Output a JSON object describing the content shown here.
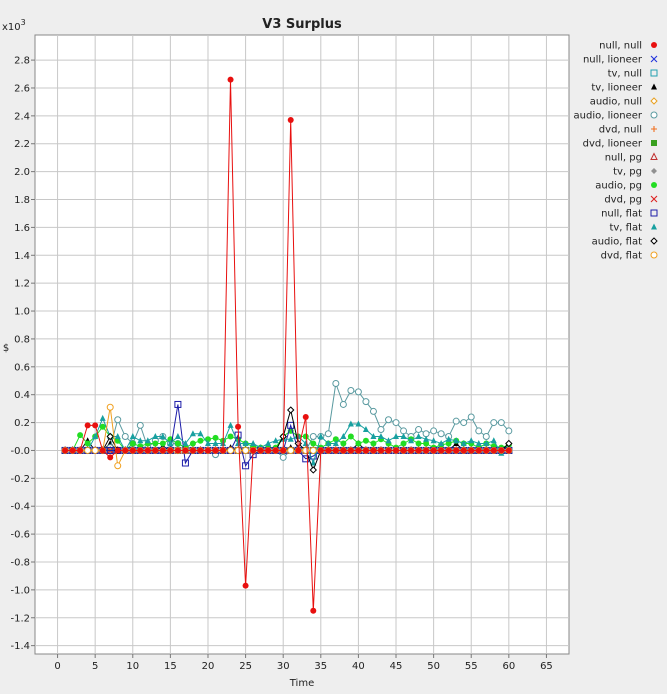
{
  "chart_data": {
    "type": "line",
    "title": "V3 Surplus",
    "xlabel": "Time",
    "ylabel": "$",
    "y_multiplier_label": "x10",
    "y_multiplier_exponent": "3",
    "xlim": [
      -3,
      68
    ],
    "ylim": [
      -1.46,
      2.98
    ],
    "x_ticks": [
      0,
      5,
      10,
      15,
      20,
      25,
      30,
      35,
      40,
      45,
      50,
      55,
      60,
      65
    ],
    "y_ticks": [
      -1.4,
      -1.2,
      -1.0,
      -0.8,
      -0.6,
      -0.4,
      -0.2,
      0.0,
      0.2,
      0.4,
      0.6,
      0.8,
      1.0,
      1.2,
      1.4,
      1.6,
      1.8,
      2.0,
      2.2,
      2.4,
      2.6,
      2.8
    ],
    "y_tick_labels": [
      "-1.4",
      "-1.2",
      "-1.0",
      "-0.8",
      "-0.6",
      "-0.4",
      "-0.2",
      "-0.0",
      "0.2",
      "0.4",
      "0.6",
      "0.8",
      "1.0",
      "1.2",
      "1.4",
      "1.6",
      "1.8",
      "2.0",
      "2.2",
      "2.4",
      "2.6",
      "2.8"
    ],
    "grid": true,
    "legend_position": "right",
    "x": [
      1,
      2,
      3,
      4,
      5,
      6,
      7,
      8,
      9,
      10,
      11,
      12,
      13,
      14,
      15,
      16,
      17,
      18,
      19,
      20,
      21,
      22,
      23,
      24,
      25,
      26,
      27,
      28,
      29,
      30,
      31,
      32,
      33,
      34,
      35,
      36,
      37,
      38,
      39,
      40,
      41,
      42,
      43,
      44,
      45,
      46,
      47,
      48,
      49,
      50,
      51,
      52,
      53,
      54,
      55,
      56,
      57,
      58,
      59,
      60
    ],
    "series": [
      {
        "name": "null, null",
        "color": "#e8100f",
        "marker": "circle-filled",
        "values": [
          0,
          0,
          0,
          0.18,
          0.18,
          0,
          -0.05,
          0,
          0,
          0,
          0,
          0,
          0,
          0,
          0,
          0,
          0,
          0,
          0,
          0,
          0,
          0,
          2.66,
          0.17,
          -0.97,
          0,
          0,
          0,
          0,
          0,
          2.37,
          0,
          0.24,
          -1.15,
          0,
          0,
          0,
          0,
          0,
          0,
          0,
          0,
          0,
          0,
          0,
          0,
          0,
          0,
          0,
          0,
          0,
          0,
          0,
          0,
          0,
          0,
          0,
          0,
          0,
          0
        ]
      },
      {
        "name": "null, lioneer",
        "color": "#2233dd",
        "marker": "x",
        "values": [
          0,
          0,
          0,
          0,
          0,
          0,
          0,
          0,
          0,
          0,
          0,
          0,
          0,
          0,
          0,
          0,
          0,
          0,
          0,
          0,
          0,
          0,
          0,
          0,
          0,
          0,
          0,
          0,
          0,
          0,
          0,
          0,
          0,
          0,
          0,
          0,
          0,
          0,
          0,
          0,
          0,
          0,
          0,
          0,
          0,
          0,
          0,
          0,
          0,
          0,
          0,
          0,
          0,
          0,
          0,
          0,
          0,
          0,
          0,
          0
        ]
      },
      {
        "name": "tv, null",
        "color": "#22a0b0",
        "marker": "square-open",
        "values": [
          0,
          0,
          0,
          0,
          0,
          0,
          0,
          0,
          0,
          0,
          0,
          0,
          0,
          0,
          0,
          0,
          0,
          0,
          0,
          0,
          0,
          0,
          0,
          0,
          0,
          0,
          0,
          0,
          0,
          0,
          0,
          0,
          0,
          0,
          0,
          0,
          0,
          0,
          0,
          0,
          0,
          0,
          0,
          0,
          0,
          0,
          0,
          0,
          0,
          0,
          0,
          0,
          0,
          0,
          0,
          0,
          0,
          0,
          0,
          0
        ]
      },
      {
        "name": "tv, lioneer",
        "color": "#000000",
        "marker": "triangle-filled",
        "values": [
          0,
          0,
          0,
          0.07,
          0,
          0,
          0.05,
          0,
          0,
          0,
          0,
          0,
          0,
          0.03,
          0,
          0,
          0,
          0,
          0,
          0,
          0,
          0,
          0.02,
          0,
          0,
          0,
          0,
          0,
          0,
          0,
          0.02,
          0,
          0,
          0,
          0,
          0,
          0,
          0,
          0,
          0.05,
          0,
          0,
          0,
          0,
          0,
          0,
          0,
          0,
          0,
          0,
          0,
          0,
          0.05,
          0,
          0,
          0,
          0,
          0,
          0,
          0.03
        ]
      },
      {
        "name": "audio, null",
        "color": "#e8a020",
        "marker": "diamond-open",
        "values": [
          0,
          0,
          0,
          0,
          0,
          0,
          0,
          0,
          0,
          0,
          0,
          0,
          0,
          0,
          0,
          0,
          0,
          0,
          0,
          0,
          0,
          0,
          0,
          0,
          0,
          0,
          0,
          0,
          0,
          0,
          0,
          0,
          0,
          0,
          0,
          0,
          0,
          0,
          0,
          0,
          0,
          0,
          0,
          0,
          0,
          0,
          0,
          0,
          0,
          0,
          0,
          0,
          0,
          0,
          0,
          0,
          0,
          0,
          0,
          0
        ]
      },
      {
        "name": "audio, lioneer",
        "color": "#5a9aa0",
        "marker": "circle-open",
        "values": [
          0,
          0,
          0,
          0,
          0,
          0,
          0.02,
          0.22,
          0.1,
          0.05,
          0.18,
          0.02,
          0.07,
          0.1,
          0.05,
          0.05,
          0.02,
          0,
          0,
          0,
          -0.03,
          0,
          0,
          0,
          0,
          0,
          0,
          0,
          0,
          -0.05,
          0,
          0,
          0,
          0.1,
          0.1,
          0.12,
          0.48,
          0.33,
          0.43,
          0.42,
          0.35,
          0.28,
          0.15,
          0.22,
          0.2,
          0.14,
          0.1,
          0.15,
          0.12,
          0.14,
          0.12,
          0.1,
          0.21,
          0.2,
          0.24,
          0.14,
          0.1,
          0.2,
          0.2,
          0.14
        ]
      },
      {
        "name": "dvd, null",
        "color": "#f07020",
        "marker": "plus",
        "values": [
          0,
          0,
          0,
          0,
          0,
          0,
          0,
          0,
          0,
          0,
          0,
          0,
          0,
          0,
          0,
          0,
          0,
          0,
          0,
          0,
          0,
          0,
          0,
          0,
          0,
          0,
          0,
          0,
          0,
          0,
          0,
          0,
          0,
          0,
          0,
          0,
          0,
          0,
          0,
          0,
          0,
          0,
          0,
          0,
          0,
          0,
          0,
          0,
          0,
          0,
          0,
          0,
          0,
          0,
          0,
          0,
          0,
          0,
          0,
          0
        ]
      },
      {
        "name": "dvd, lioneer",
        "color": "#3aa020",
        "marker": "square-filled",
        "values": [
          0,
          0,
          0,
          0,
          0,
          0,
          0,
          0,
          0,
          0,
          0,
          0,
          0,
          0,
          0,
          0,
          0,
          0,
          0,
          0,
          0,
          0,
          0,
          0,
          0,
          0,
          0,
          0,
          0,
          0,
          0,
          0,
          0,
          0,
          0,
          0,
          0,
          0,
          0,
          0,
          0,
          0,
          0,
          0,
          0,
          0,
          0,
          0,
          0,
          0,
          0,
          0,
          0,
          0,
          0,
          0,
          0,
          0,
          0,
          0
        ]
      },
      {
        "name": "null, pg",
        "color": "#c03030",
        "marker": "triangle-open",
        "values": [
          0,
          0,
          0,
          0,
          0,
          0,
          0,
          0,
          0,
          0,
          0,
          0,
          0,
          0,
          0,
          0,
          0,
          0,
          0,
          0,
          0,
          0,
          0,
          0,
          0,
          0,
          0,
          0,
          0,
          0,
          0,
          0,
          0,
          0,
          0,
          0,
          0,
          0,
          0,
          0,
          0,
          0,
          0,
          0,
          0,
          0,
          0,
          0,
          0,
          0,
          0,
          0,
          0,
          0,
          0,
          0,
          0,
          0,
          0,
          0
        ]
      },
      {
        "name": "tv, pg",
        "color": "#909090",
        "marker": "diamond-filled",
        "values": [
          0,
          0,
          0,
          0,
          0,
          0,
          0,
          0,
          0,
          0,
          0,
          0,
          0,
          0,
          0,
          0,
          0,
          0,
          0,
          0,
          0,
          0,
          0,
          0,
          0,
          0,
          0,
          0,
          0,
          0,
          0,
          0,
          0,
          0,
          0,
          0,
          0,
          0,
          0,
          0,
          0,
          0,
          0,
          0,
          0,
          0,
          0,
          0,
          0,
          0,
          0,
          0,
          0,
          0,
          0,
          0,
          0,
          0,
          0,
          0
        ]
      },
      {
        "name": "audio, pg",
        "color": "#22dd22",
        "marker": "circle-filled",
        "values": [
          0,
          0,
          0.11,
          0.05,
          0.1,
          0.17,
          0.1,
          0.07,
          0,
          0.05,
          0.03,
          0.05,
          0.05,
          0.05,
          0.08,
          0.05,
          0.02,
          0.05,
          0.07,
          0.08,
          0.09,
          0.07,
          0.1,
          0.08,
          0.05,
          0.03,
          0.02,
          0.02,
          0.02,
          0.1,
          0.14,
          0.1,
          0.1,
          0.05,
          0.02,
          0.05,
          0.08,
          0.05,
          0.1,
          0.05,
          0.07,
          0.05,
          0.08,
          0.05,
          0.02,
          0.05,
          0.08,
          0.05,
          0.05,
          0.02,
          0.04,
          0.05,
          0.07,
          0.05,
          0.05,
          0.02,
          0.05,
          0.03,
          0.02,
          0.04
        ]
      },
      {
        "name": "dvd, pg",
        "color": "#dd2222",
        "marker": "x",
        "values": [
          0,
          0,
          0,
          0,
          0,
          0,
          0,
          0,
          0,
          0,
          0,
          0,
          0,
          0,
          0,
          0,
          0,
          0,
          0,
          0,
          0,
          0,
          0,
          0,
          0,
          0,
          0,
          0,
          0,
          0,
          0,
          0,
          0,
          0,
          0,
          0,
          0,
          0,
          0,
          0,
          0,
          0,
          0,
          0,
          0,
          0,
          0,
          0,
          0,
          0,
          0,
          0,
          0,
          0,
          0,
          0,
          0,
          0,
          0,
          0
        ]
      },
      {
        "name": "null, flat",
        "color": "#1c1ca8",
        "marker": "square-open",
        "values": [
          0,
          0,
          0,
          0,
          0,
          0,
          0,
          0,
          0,
          0,
          0,
          0,
          0,
          0,
          0,
          0.33,
          -0.09,
          0,
          0,
          0,
          0,
          0,
          0,
          0.11,
          -0.11,
          -0.03,
          0,
          0,
          0,
          0,
          0.18,
          0,
          -0.06,
          -0.04,
          0,
          0,
          0,
          0,
          0,
          0,
          0,
          0,
          0,
          0,
          0,
          0,
          0,
          0,
          0,
          0,
          0,
          0,
          0,
          0,
          0,
          0,
          0,
          0,
          0,
          0
        ]
      },
      {
        "name": "tv, flat",
        "color": "#18a0a0",
        "marker": "triangle-filled",
        "values": [
          0,
          0,
          0,
          0,
          0.1,
          0.23,
          0.1,
          0.1,
          0,
          0.1,
          0.07,
          0.07,
          0.1,
          0.1,
          0.05,
          0.1,
          0.05,
          0.12,
          0.12,
          0.05,
          0.05,
          0.05,
          0.18,
          0.05,
          0.05,
          0.05,
          0.02,
          0.05,
          0.07,
          0.08,
          0.08,
          0.1,
          0.05,
          -0.09,
          0.1,
          0.05,
          0.05,
          0.1,
          0.19,
          0.19,
          0.15,
          0.1,
          0.1,
          0.07,
          0.1,
          0.1,
          0.07,
          0.1,
          0.08,
          0.07,
          0.05,
          0.08,
          0.07,
          0.05,
          0.07,
          0.05,
          0.05,
          0.07,
          -0.02,
          0.02
        ]
      },
      {
        "name": "audio, flat",
        "color": "#000000",
        "marker": "diamond-open",
        "values": [
          0,
          0,
          0,
          0,
          0,
          0,
          0.1,
          0,
          0,
          0,
          0,
          0,
          0,
          0,
          0,
          0,
          0,
          0,
          0,
          0,
          0,
          0,
          0,
          0,
          0,
          0,
          0,
          0,
          0,
          0.1,
          0.29,
          0.05,
          0,
          -0.14,
          0,
          0,
          0,
          0,
          0,
          0,
          0,
          0,
          0,
          0,
          0,
          0,
          0,
          0,
          0,
          0,
          0,
          0,
          0,
          0,
          0,
          0,
          0,
          0,
          0,
          0.05
        ]
      },
      {
        "name": "dvd, flat",
        "color": "#f0a020",
        "marker": "circle-open",
        "values": [
          0,
          0,
          0,
          0,
          0,
          0,
          0.31,
          -0.11,
          0,
          0,
          0,
          0,
          0,
          0,
          0,
          0,
          0,
          0,
          0,
          0,
          0,
          0,
          0,
          0,
          0,
          0,
          0,
          0,
          0,
          0,
          0,
          0,
          0,
          0,
          0,
          0,
          0,
          0,
          0,
          0,
          0,
          0,
          0,
          0,
          0,
          0,
          0,
          0,
          0,
          0,
          0,
          0,
          0,
          0,
          0,
          0,
          0,
          0,
          0,
          0
        ]
      }
    ]
  }
}
